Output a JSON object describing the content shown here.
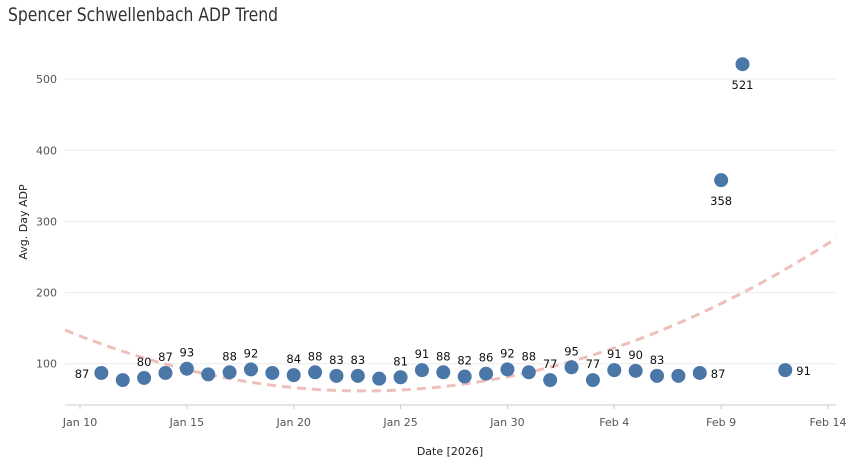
{
  "chart_data": {
    "type": "scatter",
    "title": "Spencer Schwellenbach ADP Trend",
    "xlabel": "Date [2026]",
    "ylabel": "Avg. Day ADP",
    "x_ticks": [
      "Jan 10",
      "Jan 15",
      "Jan 20",
      "Jan 25",
      "Jan 30",
      "Feb 4",
      "Feb 9",
      "Feb 14"
    ],
    "y_ticks": [
      100,
      200,
      300,
      400,
      500
    ],
    "ylim": [
      42,
      555
    ],
    "grid": "horizontal",
    "series": [
      {
        "name": "Avg. Day ADP",
        "color": "#4a76a8",
        "points": [
          {
            "date": "Jan 11",
            "value": 87
          },
          {
            "date": "Jan 12",
            "value": 77
          },
          {
            "date": "Jan 13",
            "value": 80
          },
          {
            "date": "Jan 14",
            "value": 87
          },
          {
            "date": "Jan 15",
            "value": 93
          },
          {
            "date": "Jan 16",
            "value": 85
          },
          {
            "date": "Jan 17",
            "value": 88
          },
          {
            "date": "Jan 18",
            "value": 92
          },
          {
            "date": "Jan 19",
            "value": 87
          },
          {
            "date": "Jan 20",
            "value": 84
          },
          {
            "date": "Jan 21",
            "value": 88
          },
          {
            "date": "Jan 22",
            "value": 83
          },
          {
            "date": "Jan 23",
            "value": 83
          },
          {
            "date": "Jan 24",
            "value": 79
          },
          {
            "date": "Jan 25",
            "value": 81
          },
          {
            "date": "Jan 26",
            "value": 91
          },
          {
            "date": "Jan 27",
            "value": 88
          },
          {
            "date": "Jan 28",
            "value": 82
          },
          {
            "date": "Jan 29",
            "value": 86
          },
          {
            "date": "Jan 30",
            "value": 92
          },
          {
            "date": "Jan 31",
            "value": 88
          },
          {
            "date": "Feb 1",
            "value": 77
          },
          {
            "date": "Feb 2",
            "value": 95
          },
          {
            "date": "Feb 3",
            "value": 77
          },
          {
            "date": "Feb 4",
            "value": 91
          },
          {
            "date": "Feb 5",
            "value": 90
          },
          {
            "date": "Feb 6",
            "value": 83
          },
          {
            "date": "Feb 7",
            "value": 83
          },
          {
            "date": "Feb 8",
            "value": 87
          },
          {
            "date": "Feb 9",
            "value": 358
          },
          {
            "date": "Feb 10",
            "value": 521
          },
          {
            "date": "Feb 12",
            "value": 91
          }
        ],
        "visible_labels": [
          {
            "date": "Jan 11",
            "text": "87"
          },
          {
            "date": "Jan 13",
            "text": "80"
          },
          {
            "date": "Jan 14",
            "text": "87"
          },
          {
            "date": "Jan 15",
            "text": "93"
          },
          {
            "date": "Jan 17",
            "text": "88"
          },
          {
            "date": "Jan 18",
            "text": "92"
          },
          {
            "date": "Jan 20",
            "text": "84"
          },
          {
            "date": "Jan 21",
            "text": "88"
          },
          {
            "date": "Jan 22",
            "text": "83"
          },
          {
            "date": "Jan 23",
            "text": "83"
          },
          {
            "date": "Jan 25",
            "text": "81"
          },
          {
            "date": "Jan 26",
            "text": "91"
          },
          {
            "date": "Jan 27",
            "text": "88"
          },
          {
            "date": "Jan 28",
            "text": "82"
          },
          {
            "date": "Jan 29",
            "text": "86"
          },
          {
            "date": "Jan 30",
            "text": "92"
          },
          {
            "date": "Jan 31",
            "text": "88"
          },
          {
            "date": "Feb 1",
            "text": "77"
          },
          {
            "date": "Feb 2",
            "text": "95"
          },
          {
            "date": "Feb 3",
            "text": "77"
          },
          {
            "date": "Feb 4",
            "text": "91"
          },
          {
            "date": "Feb 5",
            "text": "90"
          },
          {
            "date": "Feb 6",
            "text": "83"
          },
          {
            "date": "Feb 8",
            "text": "87"
          },
          {
            "date": "Feb 9",
            "text": "358"
          },
          {
            "date": "Feb 10",
            "text": "521"
          },
          {
            "date": "Feb 12",
            "text": "91"
          }
        ]
      }
    ],
    "trendline": {
      "type": "quadratic",
      "style": "dashed",
      "color": "#eebfbb",
      "points": [
        {
          "date": "Jan 10",
          "value": 139
        },
        {
          "date": "Jan 24",
          "value": 62
        },
        {
          "date": "Feb 14",
          "value": 269
        }
      ]
    }
  }
}
